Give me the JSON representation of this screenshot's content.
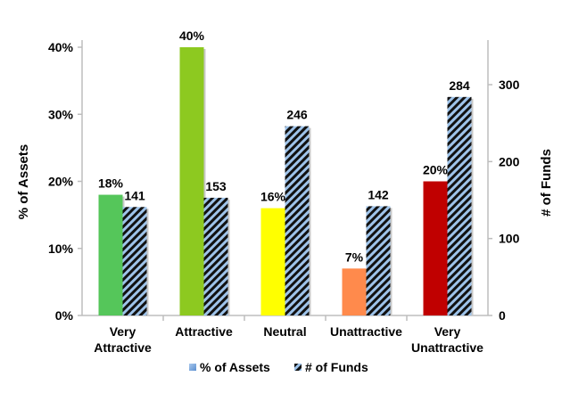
{
  "chart_data": {
    "type": "bar",
    "categories": [
      [
        "Very",
        "Attractive"
      ],
      [
        "Attractive"
      ],
      [
        "Neutral"
      ],
      [
        "Unattractive"
      ],
      [
        "Very",
        "Unattractive"
      ]
    ],
    "series": [
      {
        "name": "% of Assets",
        "axis": "left",
        "values": [
          18,
          40,
          16,
          7,
          20
        ],
        "labels": [
          "18%",
          "40%",
          "16%",
          "7%",
          "20%"
        ],
        "colors": [
          "#55c65a",
          "#8dc920",
          "#ffff00",
          "#ff8a4c",
          "#c00000"
        ]
      },
      {
        "name": "# of Funds",
        "axis": "right",
        "values": [
          141,
          153,
          246,
          142,
          284
        ],
        "labels": [
          "141",
          "153",
          "246",
          "142",
          "284"
        ],
        "pattern": "diagonal stripes black on light blue"
      }
    ],
    "ylabel_left": "% of Assets",
    "ylabel_right": "# of Funds",
    "ylim_left": [
      0,
      40
    ],
    "ylim_right": [
      0,
      300
    ],
    "yticks_left": [
      "0%",
      "10%",
      "20%",
      "30%",
      "40%"
    ],
    "yticks_right": [
      "0",
      "100",
      "200",
      "300"
    ],
    "legend_position": "bottom",
    "grid": false
  }
}
